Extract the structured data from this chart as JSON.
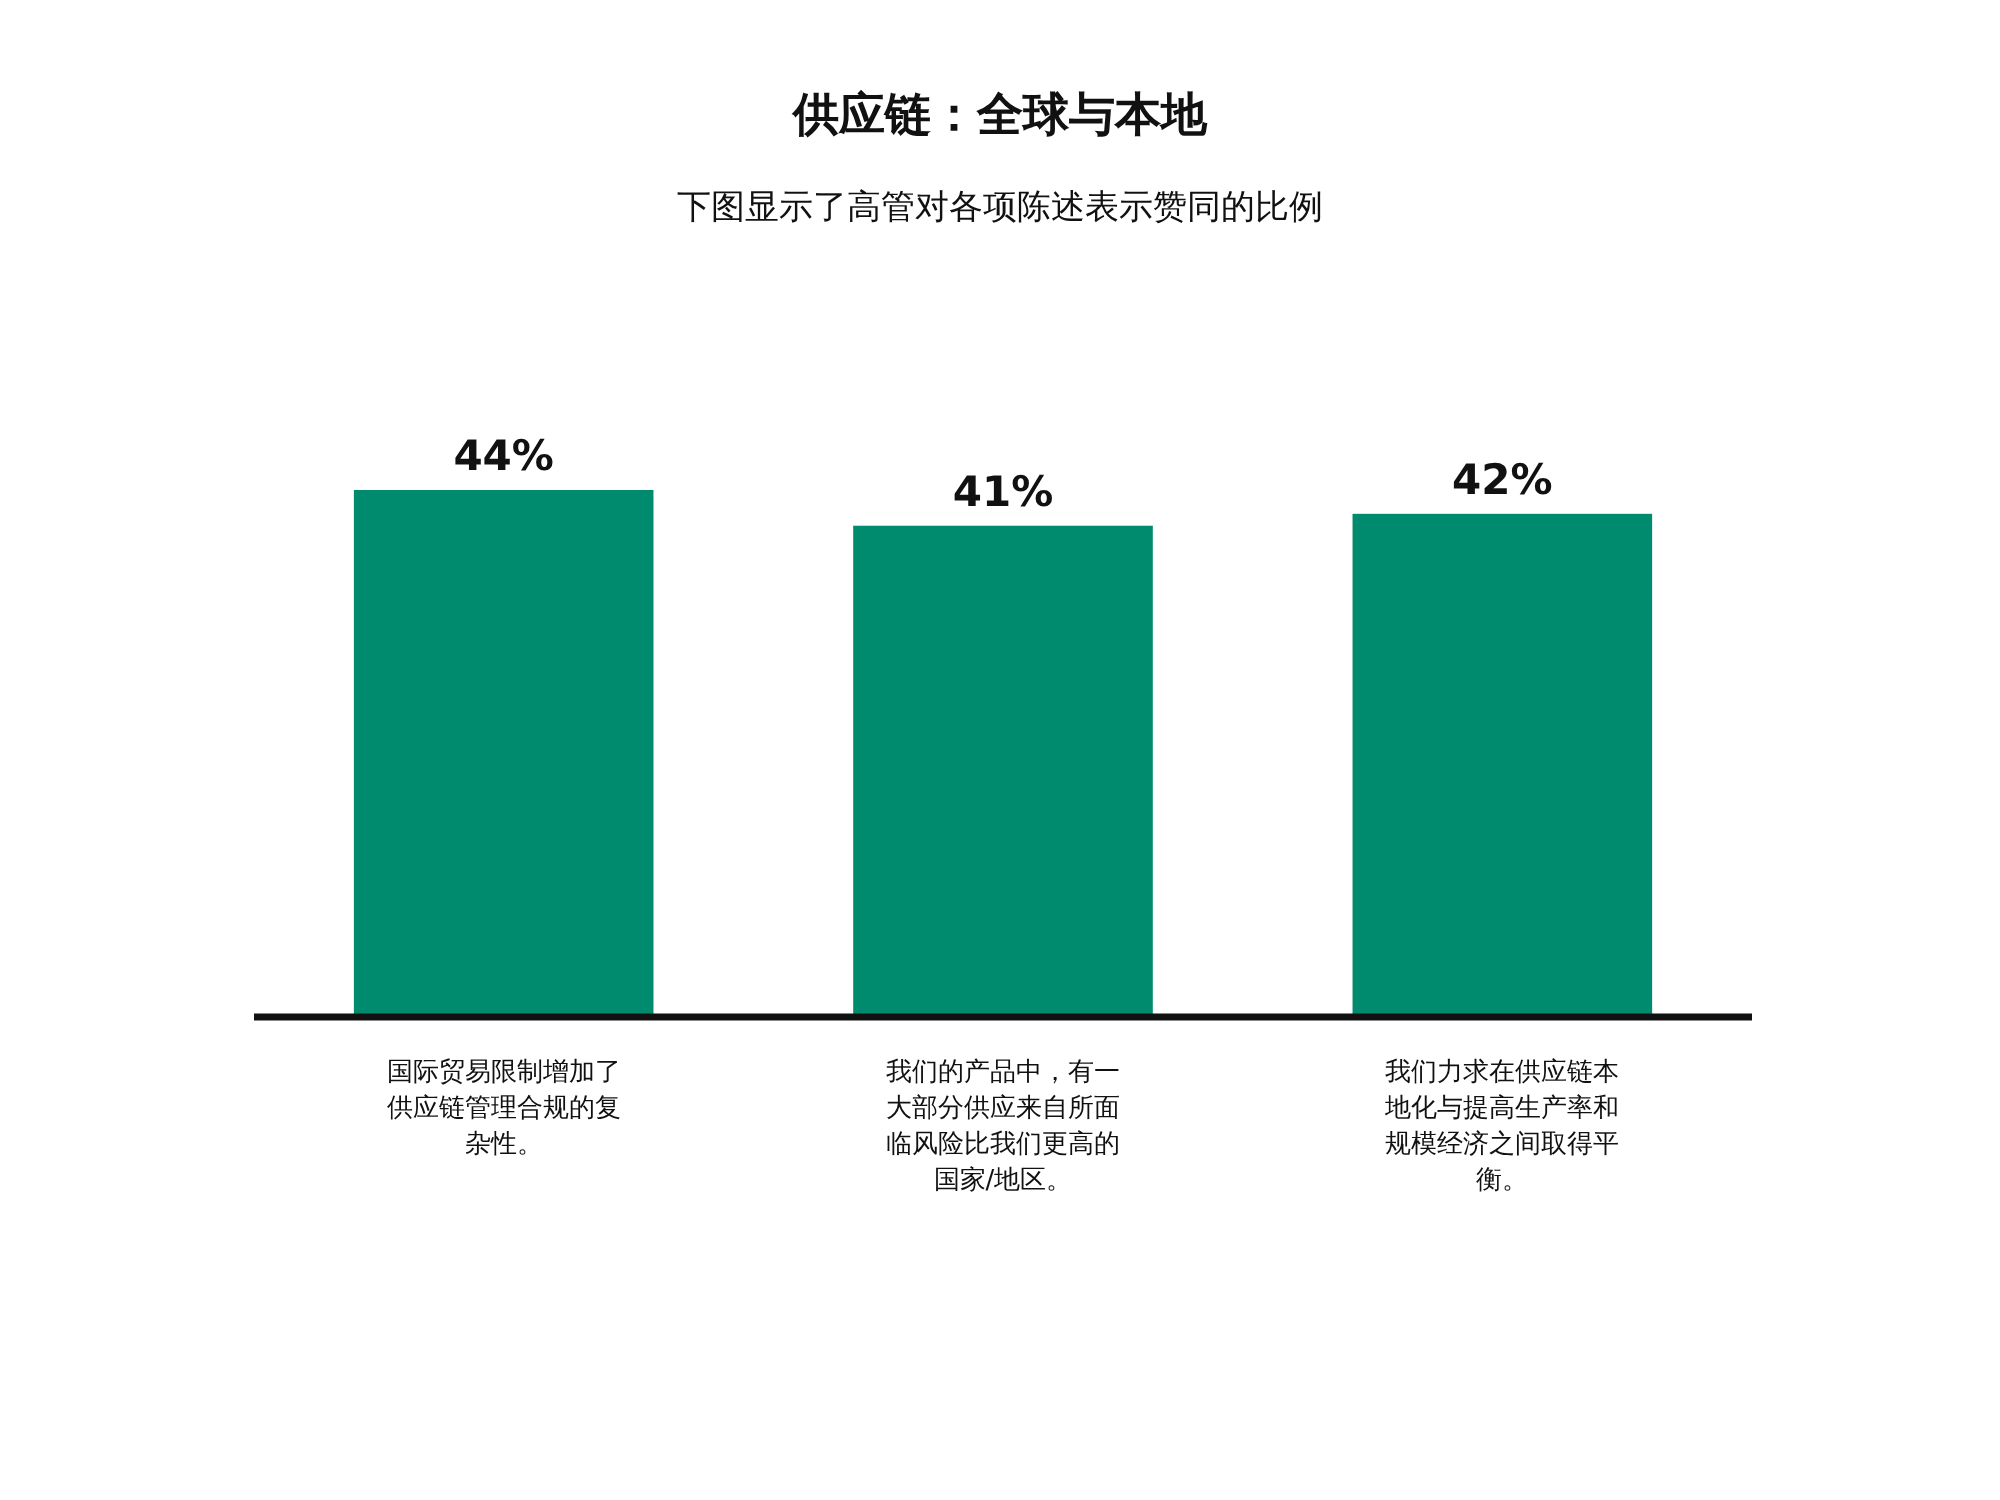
{
  "chart_data": {
    "type": "bar",
    "title": "供应链：全球与本地",
    "subtitle": "下图显示了高管对各项陈述表示赞同的比例",
    "categories": [
      "国际贸易限制增加了供应链管理合规的复杂性。",
      "我们的产品中，有一大部分供应来自所面临风险比我们更高的国家/地区。",
      "我们力求在供应链本地化与提高生产率和规模经济之间取得平衡。"
    ],
    "values": [
      44,
      41,
      42
    ],
    "value_labels": [
      "44%",
      "41%",
      "42%"
    ],
    "color": "#008a6e"
  }
}
